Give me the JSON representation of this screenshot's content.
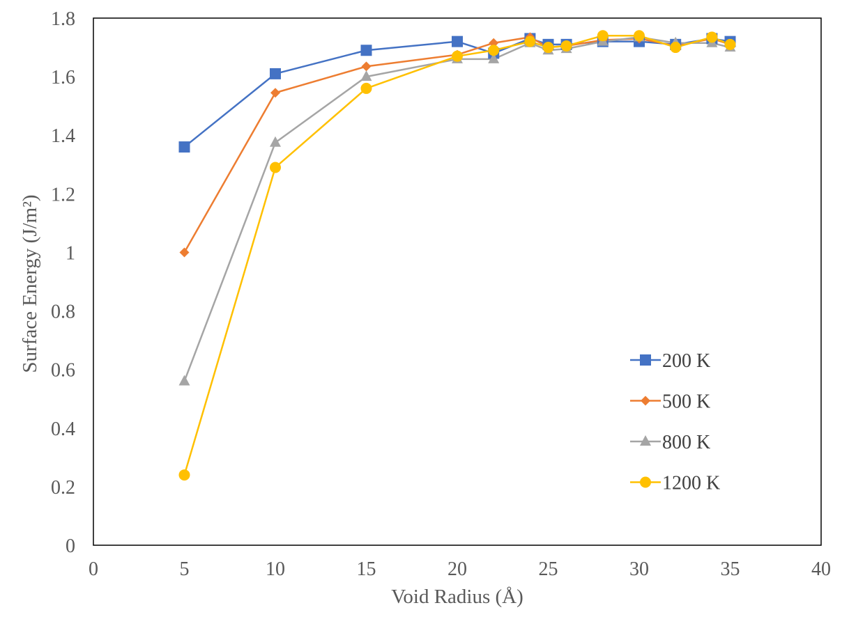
{
  "chart_data": {
    "type": "line",
    "xlabel": "Void Radius (Å)",
    "ylabel": "Surface Energy (J/m²)",
    "xlim": [
      0,
      40
    ],
    "ylim": [
      0,
      1.8
    ],
    "xticks": [
      "0",
      "5",
      "10",
      "15",
      "20",
      "25",
      "30",
      "35",
      "40"
    ],
    "yticks": [
      "0",
      "0.2",
      "0.4",
      "0.6",
      "0.8",
      "1",
      "1.2",
      "1.4",
      "1.6",
      "1.8"
    ],
    "grid": false,
    "legend_position": "right",
    "series": [
      {
        "name": "200 K",
        "color": "#4472C4",
        "marker": "square",
        "x": [
          5,
          10,
          15,
          20,
          22,
          24,
          25,
          26,
          28,
          30,
          32,
          34,
          35
        ],
        "y": [
          1.36,
          1.61,
          1.69,
          1.72,
          1.68,
          1.73,
          1.71,
          1.71,
          1.72,
          1.72,
          1.71,
          1.73,
          1.72
        ]
      },
      {
        "name": "500 K",
        "color": "#ED7D31",
        "marker": "diamond",
        "x": [
          5,
          10,
          15,
          20,
          22,
          24,
          25,
          26,
          28,
          30,
          32,
          34,
          35
        ],
        "y": [
          1.0,
          1.545,
          1.635,
          1.675,
          1.715,
          1.735,
          1.7,
          1.705,
          1.725,
          1.73,
          1.705,
          1.73,
          1.71
        ]
      },
      {
        "name": "800 K",
        "color": "#A5A5A5",
        "marker": "triangle",
        "x": [
          5,
          10,
          15,
          20,
          22,
          24,
          25,
          26,
          28,
          30,
          32,
          34,
          35
        ],
        "y": [
          0.56,
          1.375,
          1.6,
          1.66,
          1.66,
          1.715,
          1.69,
          1.695,
          1.72,
          1.735,
          1.715,
          1.715,
          1.7
        ]
      },
      {
        "name": "1200 K",
        "color": "#FFC000",
        "marker": "circle",
        "x": [
          5,
          10,
          15,
          20,
          22,
          24,
          25,
          26,
          28,
          30,
          32,
          34,
          35
        ],
        "y": [
          0.24,
          1.29,
          1.56,
          1.67,
          1.69,
          1.72,
          1.7,
          1.705,
          1.74,
          1.74,
          1.7,
          1.735,
          1.71
        ]
      }
    ]
  }
}
